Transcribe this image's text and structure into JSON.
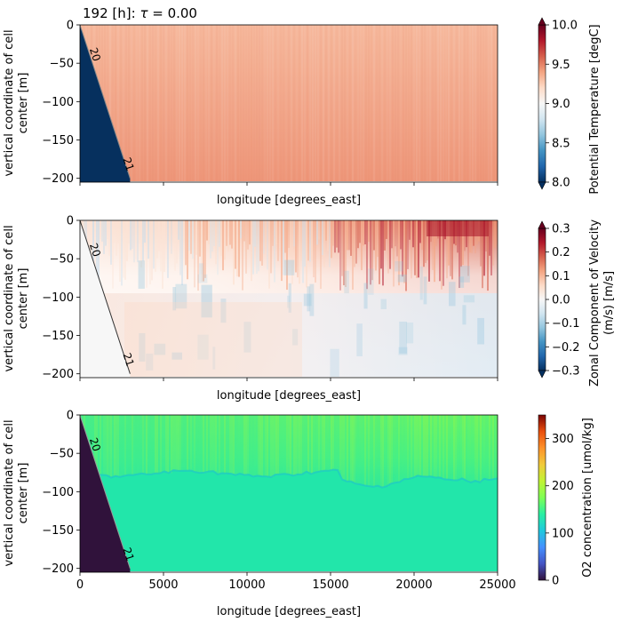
{
  "figure": {
    "title_prefix": "192 [h]: ",
    "title_symbol": "τ",
    "title_suffix": " = 0.00"
  },
  "chart_data": [
    {
      "type": "heatmap",
      "name": "temperature-panel",
      "ylabel_line1": "vertical coordinate of cell",
      "ylabel_line2": "center [m]",
      "xlabel": "longitude [degrees_east]",
      "xlim": [
        0,
        25000
      ],
      "ylim": [
        -205,
        0
      ],
      "yticks": [
        0,
        -50,
        -100,
        -150,
        -200
      ],
      "xticks": [
        0,
        5000,
        10000,
        15000,
        20000,
        25000
      ],
      "xtick_labels_visible": false,
      "colorbar": {
        "label": "Potential Temperature [degC]",
        "vmin": 8.0,
        "vmax": 10.0,
        "ticks": [
          "8.0",
          "8.5",
          "9.0",
          "9.5",
          "10.0"
        ],
        "tick_values": [
          8.0,
          8.5,
          9.0,
          9.5,
          10.0
        ],
        "cmap": "RdBu_r",
        "extend": "both"
      },
      "field": {
        "land_color": "#06305e",
        "top_color": "#f6b89c",
        "bottom_color": "#ee9679",
        "mean_value": 9.6
      },
      "contours": [
        {
          "label": "20",
          "x": 700,
          "y": -40
        },
        {
          "label": "21",
          "x": 2700,
          "y": -183
        }
      ],
      "slope_line": {
        "x0": 0,
        "y0": 0,
        "x1": 3000,
        "y1": -200
      }
    },
    {
      "type": "heatmap",
      "name": "velocity-panel",
      "ylabel_line1": "vertical coordinate of cell",
      "ylabel_line2": "center [m]",
      "xlabel": "longitude [degrees_east]",
      "xlim": [
        0,
        25000
      ],
      "ylim": [
        -205,
        0
      ],
      "yticks": [
        0,
        -50,
        -100,
        -150,
        -200
      ],
      "xticks": [
        0,
        5000,
        10000,
        15000,
        20000,
        25000
      ],
      "xtick_labels_visible": false,
      "colorbar": {
        "label_line1": "Zonal Component of Velocity",
        "label_line2": "(m/s) [m/s]",
        "vmin": -0.3,
        "vmax": 0.3,
        "ticks": [
          "−0.3",
          "−0.2",
          "−0.1",
          "0.0",
          "0.1",
          "0.2",
          "0.3"
        ],
        "tick_values": [
          -0.3,
          -0.2,
          -0.1,
          0.0,
          0.1,
          0.2,
          0.3
        ],
        "cmap": "RdBu_r",
        "extend": "both"
      },
      "field": {
        "land_color": "#f7f7f7",
        "surface_max": 0.25,
        "deep_min": -0.05
      },
      "contours": [
        {
          "label": "20",
          "x": 700,
          "y": -40
        },
        {
          "label": "21",
          "x": 2700,
          "y": -183
        }
      ],
      "slope_line": {
        "x0": 0,
        "y0": 0,
        "x1": 3000,
        "y1": -200
      }
    },
    {
      "type": "heatmap",
      "name": "oxygen-panel",
      "ylabel_line1": "vertical coordinate of cell",
      "ylabel_line2": "center [m]",
      "xlabel": "longitude [degrees_east]",
      "xlim": [
        0,
        25000
      ],
      "ylim": [
        -205,
        0
      ],
      "yticks": [
        0,
        -50,
        -100,
        -150,
        -200
      ],
      "xticks": [
        0,
        5000,
        10000,
        15000,
        20000,
        25000
      ],
      "xtick_labels": [
        "0",
        "5000",
        "10000",
        "15000",
        "20000",
        "25000"
      ],
      "xtick_labels_visible": true,
      "colorbar": {
        "label": "O2 concentration [umol/kg]",
        "vmin": 0,
        "vmax": 350,
        "ticks": [
          "0",
          "100",
          "200",
          "300"
        ],
        "tick_values": [
          0,
          100,
          200,
          300
        ],
        "cmap": "turbo",
        "extend": "neither"
      },
      "field": {
        "land_color": "#30123b",
        "upper_color": "#7ef35c",
        "lower_color": "#22e6aa",
        "interface_color": "#1fc9c6"
      },
      "contours": [
        {
          "label": "20",
          "x": 700,
          "y": -40
        },
        {
          "label": "21",
          "x": 2700,
          "y": -183
        }
      ],
      "slope_line": {
        "x0": 0,
        "y0": 0,
        "x1": 3000,
        "y1": -200
      }
    }
  ]
}
